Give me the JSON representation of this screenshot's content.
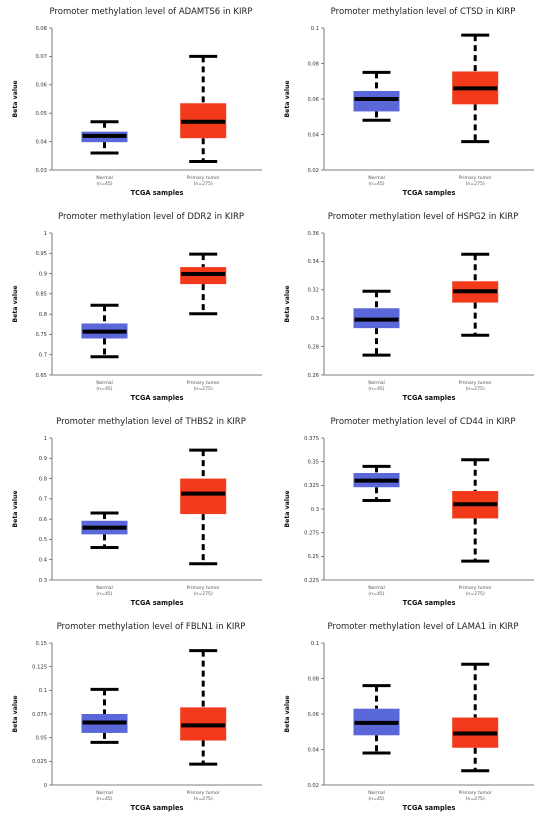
{
  "chart_data": [
    {
      "type": "box",
      "title": "Promoter methylation level of ADAMTS6 in KIRP",
      "xlabel": "TCGA samples",
      "ylabel": "Beta value",
      "ylim": [
        0.03,
        0.08
      ],
      "yticks": [
        "0.03",
        "0.04",
        "0.05",
        "0.06",
        "0.07",
        "0.08"
      ],
      "categories": [
        {
          "label": "Normal",
          "n": "(n=45)",
          "color": "#5a67d8",
          "min": 0.036,
          "q1": 0.0398,
          "median": 0.042,
          "q3": 0.0435,
          "max": 0.047
        },
        {
          "label": "Primary tumor",
          "n": "(n=275)",
          "color": "#f23a1b",
          "min": 0.033,
          "q1": 0.0412,
          "median": 0.047,
          "q3": 0.0535,
          "max": 0.07
        }
      ]
    },
    {
      "type": "box",
      "title": "Promoter methylation level of CTSD in KIRP",
      "xlabel": "TCGA samples",
      "ylabel": "Beta value",
      "ylim": [
        0.02,
        0.1
      ],
      "yticks": [
        "0.02",
        "0.04",
        "0.06",
        "0.08",
        "0.1"
      ],
      "categories": [
        {
          "label": "Normal",
          "n": "(n=45)",
          "color": "#5a67d8",
          "min": 0.048,
          "q1": 0.053,
          "median": 0.06,
          "q3": 0.0645,
          "max": 0.075
        },
        {
          "label": "Primary tumor",
          "n": "(n=275)",
          "color": "#f23a1b",
          "min": 0.036,
          "q1": 0.057,
          "median": 0.066,
          "q3": 0.0755,
          "max": 0.096
        }
      ]
    },
    {
      "type": "box",
      "title": "Promoter methylation level of DDR2 in KIRP",
      "xlabel": "TCGA samples",
      "ylabel": "Beta value",
      "ylim": [
        0.65,
        1
      ],
      "yticks": [
        "0.65",
        "0.7",
        "0.75",
        "0.8",
        "0.85",
        "0.9",
        "0.95",
        "1"
      ],
      "categories": [
        {
          "label": "Normal",
          "n": "(n=45)",
          "color": "#5a67d8",
          "min": 0.695,
          "q1": 0.74,
          "median": 0.757,
          "q3": 0.777,
          "max": 0.822
        },
        {
          "label": "Primary tumor",
          "n": "(n=275)",
          "color": "#f23a1b",
          "min": 0.801,
          "q1": 0.874,
          "median": 0.899,
          "q3": 0.916,
          "max": 0.948
        }
      ]
    },
    {
      "type": "box",
      "title": "Promoter methylation level of HSPG2 in KIRP",
      "xlabel": "TCGA samples",
      "ylabel": "Beta value",
      "ylim": [
        0.26,
        0.36
      ],
      "yticks": [
        "0.26",
        "0.28",
        "0.3",
        "0.32",
        "0.34",
        "0.36"
      ],
      "categories": [
        {
          "label": "Normal",
          "n": "(n=45)",
          "color": "#5a67d8",
          "min": 0.274,
          "q1": 0.293,
          "median": 0.299,
          "q3": 0.307,
          "max": 0.319
        },
        {
          "label": "Primary tumor",
          "n": "(n=275)",
          "color": "#f23a1b",
          "min": 0.288,
          "q1": 0.311,
          "median": 0.319,
          "q3": 0.326,
          "max": 0.345
        }
      ]
    },
    {
      "type": "box",
      "title": "Promoter methylation level of THBS2 in KIRP",
      "xlabel": "TCGA samples",
      "ylabel": "Beta value",
      "ylim": [
        0.3,
        1
      ],
      "yticks": [
        "0.3",
        "0.4",
        "0.5",
        "0.6",
        "0.7",
        "0.8",
        "0.9",
        "1"
      ],
      "categories": [
        {
          "label": "Normal",
          "n": "(n=45)",
          "color": "#5a67d8",
          "min": 0.46,
          "q1": 0.525,
          "median": 0.558,
          "q3": 0.592,
          "max": 0.63
        },
        {
          "label": "Primary tumor",
          "n": "(n=275)",
          "color": "#f23a1b",
          "min": 0.38,
          "q1": 0.625,
          "median": 0.726,
          "q3": 0.8,
          "max": 0.94
        }
      ]
    },
    {
      "type": "box",
      "title": "Promoter methylation level of CD44 in KIRP",
      "xlabel": "TCGA samples",
      "ylabel": "Beta value",
      "ylim": [
        0.225,
        0.375
      ],
      "yticks": [
        "0.225",
        "0.25",
        "0.275",
        "0.3",
        "0.325",
        "0.35",
        "0.375"
      ],
      "categories": [
        {
          "label": "Normal",
          "n": "(n=45)",
          "color": "#5a67d8",
          "min": 0.309,
          "q1": 0.323,
          "median": 0.33,
          "q3": 0.338,
          "max": 0.345
        },
        {
          "label": "Primary tumor",
          "n": "(n=275)",
          "color": "#f23a1b",
          "min": 0.245,
          "q1": 0.29,
          "median": 0.305,
          "q3": 0.319,
          "max": 0.352
        }
      ]
    },
    {
      "type": "box",
      "title": "Promoter methylation level of FBLN1 in KIRP",
      "xlabel": "TCGA samples",
      "ylabel": "Beta value",
      "ylim": [
        0,
        0.15
      ],
      "yticks": [
        "0",
        "0.025",
        "0.05",
        "0.075",
        "0.1",
        "0.125",
        "0.15"
      ],
      "categories": [
        {
          "label": "Normal",
          "n": "(n=45)",
          "color": "#5a67d8",
          "min": 0.045,
          "q1": 0.055,
          "median": 0.066,
          "q3": 0.075,
          "max": 0.101
        },
        {
          "label": "Primary tumor",
          "n": "(n=275)",
          "color": "#f23a1b",
          "min": 0.022,
          "q1": 0.047,
          "median": 0.063,
          "q3": 0.082,
          "max": 0.142
        }
      ]
    },
    {
      "type": "box",
      "title": "Promoter methylation level of LAMA1 in KIRP",
      "xlabel": "TCGA samples",
      "ylabel": "Beta value",
      "ylim": [
        0.02,
        0.1
      ],
      "yticks": [
        "0.02",
        "0.04",
        "0.06",
        "0.08",
        "0.1"
      ],
      "categories": [
        {
          "label": "Normal",
          "n": "(n=45)",
          "color": "#5a67d8",
          "min": 0.038,
          "q1": 0.048,
          "median": 0.055,
          "q3": 0.063,
          "max": 0.076
        },
        {
          "label": "Primary tumor",
          "n": "(n=275)",
          "color": "#f23a1b",
          "min": 0.028,
          "q1": 0.041,
          "median": 0.049,
          "q3": 0.058,
          "max": 0.088
        }
      ]
    }
  ]
}
